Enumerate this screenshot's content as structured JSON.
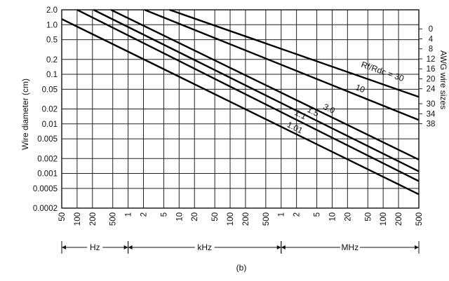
{
  "chart_data": {
    "type": "line",
    "title": "",
    "xlabel": "",
    "ylabel": "Wire diameter (cm)",
    "right_ylabel": "AWG wire sizes",
    "caption": "(b)",
    "x_scale": "log",
    "y_scale": "log",
    "xlim": [
      50,
      500000000
    ],
    "ylim": [
      0.0002,
      2.0
    ],
    "grid": true,
    "x_tick_labels": [
      "50",
      "100",
      "200",
      "500",
      "1",
      "2",
      "5",
      "10",
      "20",
      "50",
      "100",
      "200",
      "500",
      "1",
      "2",
      "5",
      "10",
      "20",
      "50",
      "100",
      "200",
      "500"
    ],
    "x_ticks_hz": [
      50,
      100,
      200,
      500,
      1000,
      2000,
      5000,
      10000,
      20000,
      50000,
      100000,
      200000,
      500000,
      1000000,
      2000000,
      5000000,
      10000000,
      20000000,
      50000000,
      100000000,
      200000000,
      500000000
    ],
    "y_tick_labels": [
      "2.0",
      "1.0",
      "0.5",
      "0.2",
      "0.1",
      "0.05",
      "0.02",
      "0.01",
      "0.005",
      "0.002",
      "0.001",
      "0.0005",
      "0.0002"
    ],
    "y_ticks": [
      2.0,
      1.0,
      0.5,
      0.2,
      0.1,
      0.05,
      0.02,
      0.01,
      0.005,
      0.002,
      0.001,
      0.0005,
      0.0002
    ],
    "awg_labels": [
      "0",
      "4",
      "8",
      "12",
      "16",
      "20",
      "24",
      "30",
      "34",
      "38"
    ],
    "awg_diameters_cm": [
      0.825,
      0.519,
      0.326,
      0.205,
      0.129,
      0.0812,
      0.0511,
      0.0255,
      0.016,
      0.0101
    ],
    "frequency_ranges": [
      {
        "label": "Hz",
        "from": 50,
        "to": 1000
      },
      {
        "label": "kHz",
        "from": 1000,
        "to": 1000000
      },
      {
        "label": "MHz",
        "from": 1000000,
        "to": 500000000
      }
    ],
    "series_label_prefix": "Rf/Rdc = ",
    "series": [
      {
        "name": "30",
        "x": [
          6500,
          500000000
        ],
        "y": [
          2.0,
          0.035
        ]
      },
      {
        "name": "10",
        "x": [
          2100,
          500000000
        ],
        "y": [
          2.0,
          0.012
        ]
      },
      {
        "name": "3.0",
        "x": [
          460,
          500000000
        ],
        "y": [
          2.0,
          0.0019
        ]
      },
      {
        "name": "1.5",
        "x": [
          210,
          500000000
        ],
        "y": [
          2.0,
          0.0011
        ]
      },
      {
        "name": "1.1",
        "x": [
          100,
          500000000
        ],
        "y": [
          2.0,
          0.0007
        ]
      },
      {
        "name": "1.01",
        "x": [
          50,
          500000000
        ],
        "y": [
          1.3,
          0.00038
        ]
      }
    ]
  }
}
